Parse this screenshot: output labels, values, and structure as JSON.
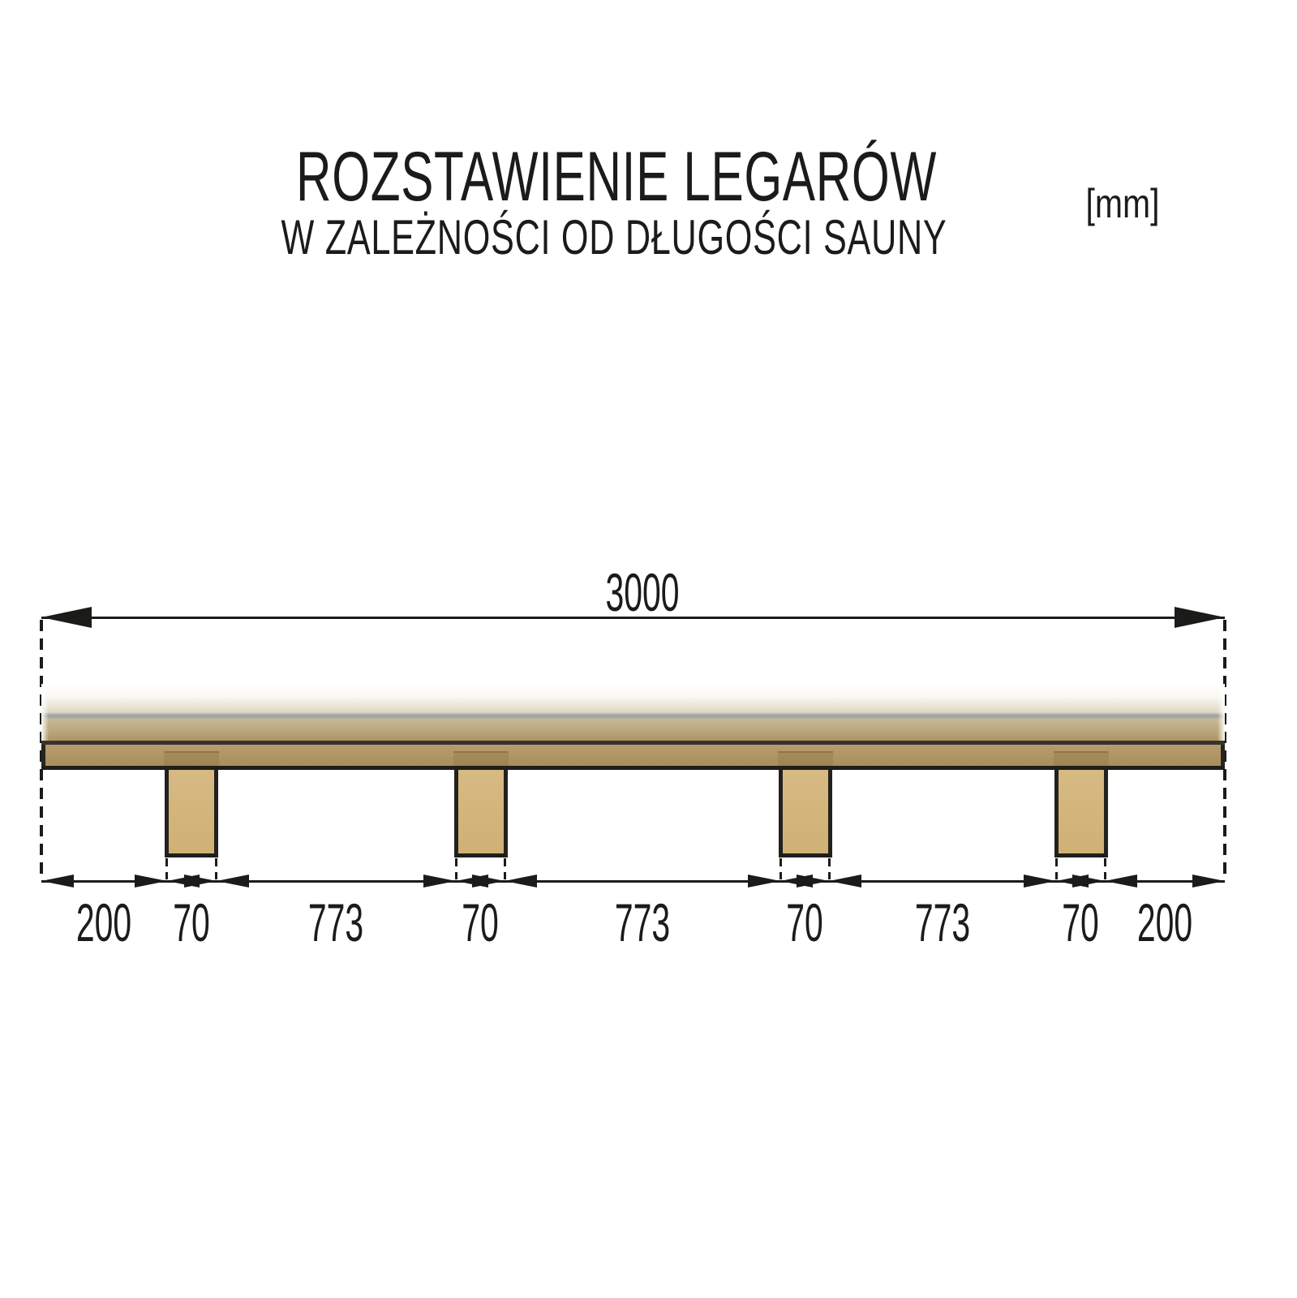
{
  "title": {
    "line1": "ROZSTAWIENIE LEGARÓW",
    "line2": "W ZALEŻNOŚCI OD DŁUGOŚCI SAUNY"
  },
  "units_badge": "[mm]",
  "diagram": {
    "type": "technical-dimension-diagram",
    "total_length": {
      "label": "3000",
      "value_mm": 3000
    },
    "bottom_segments": [
      {
        "label": "200",
        "value_mm": 200
      },
      {
        "label": "70",
        "value_mm": 70
      },
      {
        "label": "773",
        "value_mm": 773
      },
      {
        "label": "70",
        "value_mm": 70
      },
      {
        "label": "773",
        "value_mm": 773
      },
      {
        "label": "70",
        "value_mm": 70
      },
      {
        "label": "773",
        "value_mm": 773
      },
      {
        "label": "70",
        "value_mm": 70
      },
      {
        "label": "200",
        "value_mm": 200
      }
    ],
    "joist_count": 4
  },
  "colors": {
    "ink": "#1b1b19",
    "joist_fill": "#d4b77e",
    "beam_fill": "#b09566",
    "beam_border": "#25241e",
    "deck_gray_line": "#a0a4a4",
    "background": "#ffffff"
  }
}
